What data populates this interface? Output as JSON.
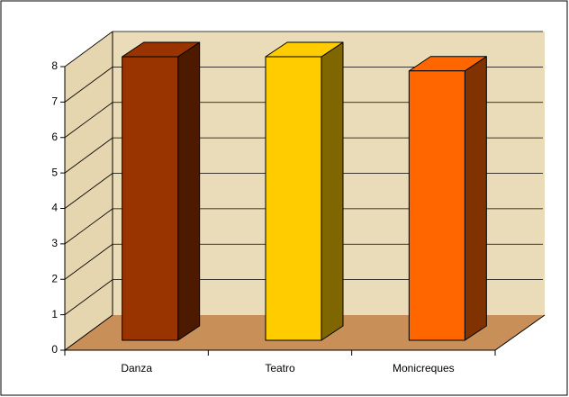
{
  "chart_data": {
    "type": "bar3d",
    "categories": [
      "Danza",
      "Teatro",
      "Monicreques"
    ],
    "values": [
      8,
      8,
      7.6
    ],
    "colors": [
      "#993300",
      "#ffcc00",
      "#ff6600"
    ],
    "side_colors": [
      "#4d1a00",
      "#806600",
      "#803300"
    ],
    "ylim": [
      0,
      8
    ],
    "yticks": [
      0,
      1,
      2,
      3,
      4,
      5,
      6,
      7,
      8
    ],
    "grid": true
  }
}
